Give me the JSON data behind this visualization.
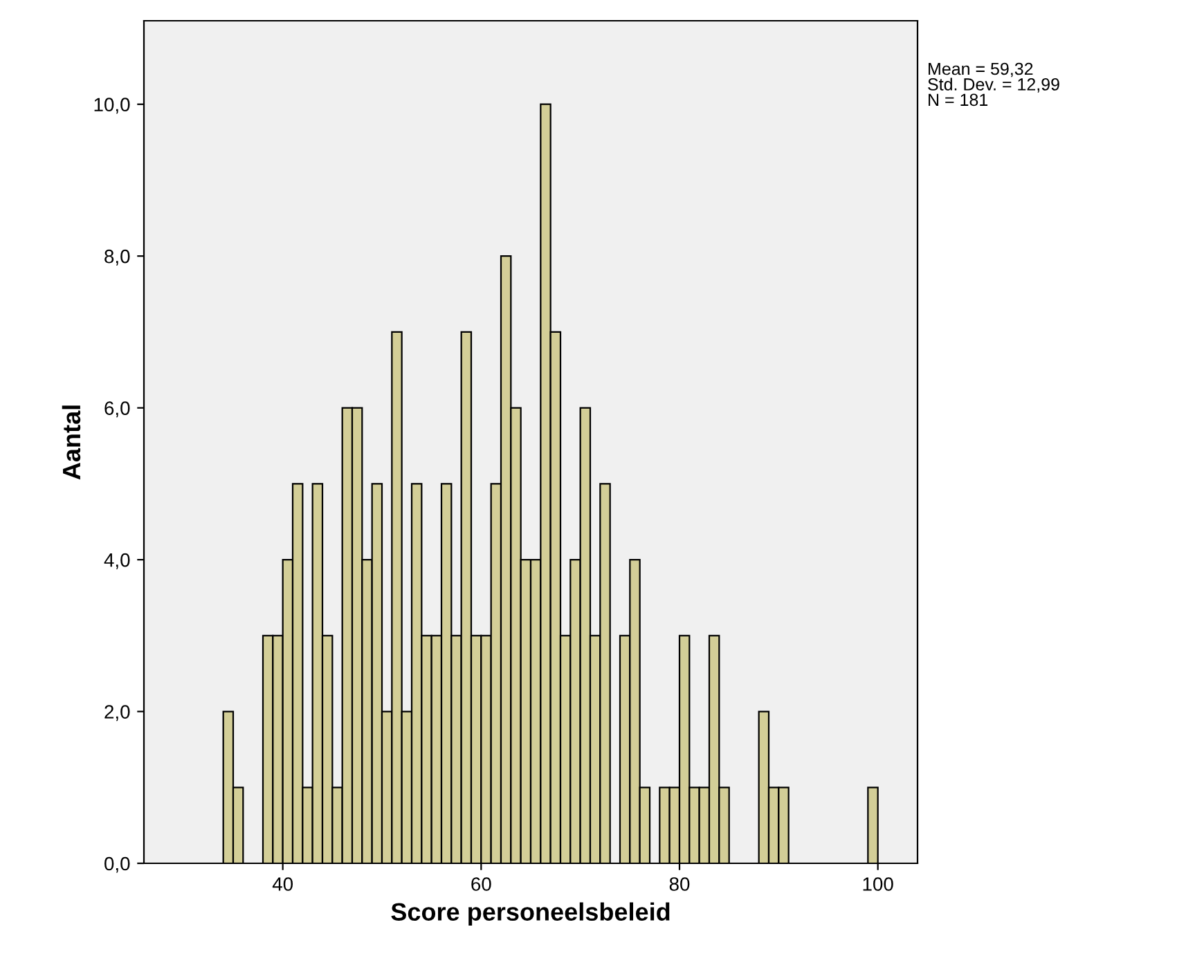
{
  "chart_data": {
    "type": "histogram",
    "xlabel": "Score personeelsbeleid",
    "ylabel": "Aantal",
    "bins": [
      34,
      35,
      36,
      37,
      38,
      39,
      40,
      41,
      42,
      43,
      44,
      45,
      46,
      47,
      48,
      49,
      50,
      51,
      52,
      53,
      54,
      55,
      56,
      57,
      58,
      59,
      60,
      61,
      62,
      63,
      64,
      65,
      66,
      67,
      68,
      69,
      70,
      71,
      72,
      73,
      74,
      75,
      76,
      77,
      78,
      79,
      80,
      81,
      82,
      83,
      84,
      85,
      86,
      87,
      88,
      89,
      90,
      91,
      92,
      93,
      94,
      95,
      96,
      97,
      98,
      99,
      100
    ],
    "values": [
      2,
      1,
      0,
      0,
      3,
      3,
      4,
      5,
      1,
      5,
      3,
      1,
      6,
      6,
      4,
      5,
      2,
      7,
      2,
      5,
      3,
      3,
      5,
      3,
      7,
      3,
      3,
      5,
      8,
      6,
      4,
      4,
      10,
      7,
      3,
      4,
      6,
      3,
      5,
      0,
      3,
      4,
      1,
      0,
      1,
      1,
      3,
      1,
      1,
      3,
      1,
      0,
      0,
      0,
      2,
      1,
      1,
      0,
      0,
      0,
      0,
      0,
      0,
      0,
      0,
      1
    ],
    "color": "#d3ce97",
    "xlim": [
      26,
      104
    ],
    "xticks": [
      40,
      60,
      80,
      100
    ],
    "ylim": [
      0,
      11.1
    ],
    "yticks": [
      {
        "value": 0,
        "label": "0,0"
      },
      {
        "value": 2,
        "label": "2,0"
      },
      {
        "value": 4,
        "label": "4,0"
      },
      {
        "value": 6,
        "label": "6,0"
      },
      {
        "value": 8,
        "label": "8,0"
      },
      {
        "value": 10,
        "label": "10,0"
      }
    ],
    "grid": false,
    "annotations": [
      "Mean = 59,32\nStd. Dev. = 12,99\nN = 181"
    ]
  }
}
